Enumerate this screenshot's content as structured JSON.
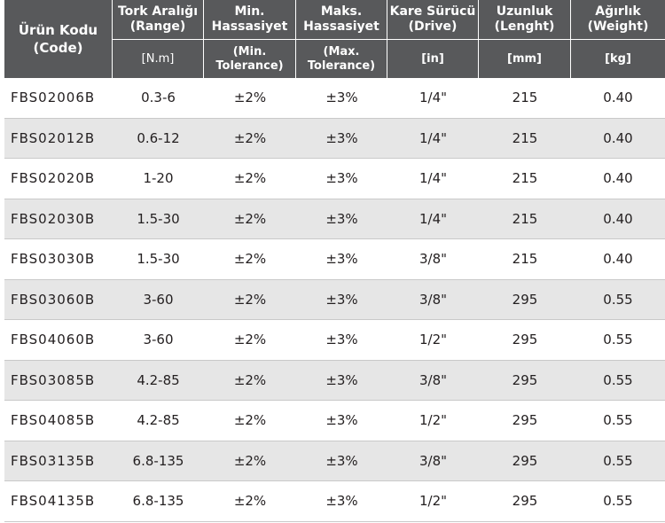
{
  "header": {
    "code": {
      "line1": "Ürün Kodu",
      "line2": "(Code)"
    },
    "range": {
      "line1": "Tork Aralığı",
      "line2": "(Range)",
      "unit": "[N.m]"
    },
    "min_tol": {
      "line1": "Min.",
      "line2": "Hassasiyet",
      "sub1": "(Min.",
      "sub2": "Tolerance)"
    },
    "max_tol": {
      "line1": "Maks.",
      "line2": "Hassasiyet",
      "sub1": "(Max.",
      "sub2": "Tolerance)"
    },
    "drive": {
      "line1": "Kare Sürücü",
      "line2": "(Drive)",
      "unit": "[in]"
    },
    "length": {
      "line1": "Uzunluk",
      "line2": "(Lenght)",
      "unit": "[mm]"
    },
    "weight": {
      "line1": "Ağırlık",
      "line2": "(Weight)",
      "unit": "[kg]"
    }
  },
  "rows": [
    {
      "code": "FBS02006B",
      "range": "0.3-6",
      "min": "±2%",
      "max": "±3%",
      "drive": "1/4\"",
      "length": "215",
      "weight": "0.40"
    },
    {
      "code": "FBS02012B",
      "range": "0.6-12",
      "min": "±2%",
      "max": "±3%",
      "drive": "1/4\"",
      "length": "215",
      "weight": "0.40"
    },
    {
      "code": "FBS02020B",
      "range": "1-20",
      "min": "±2%",
      "max": "±3%",
      "drive": "1/4\"",
      "length": "215",
      "weight": "0.40"
    },
    {
      "code": "FBS02030B",
      "range": "1.5-30",
      "min": "±2%",
      "max": "±3%",
      "drive": "1/4\"",
      "length": "215",
      "weight": "0.40"
    },
    {
      "code": "FBS03030B",
      "range": "1.5-30",
      "min": "±2%",
      "max": "±3%",
      "drive": "3/8\"",
      "length": "215",
      "weight": "0.40"
    },
    {
      "code": "FBS03060B",
      "range": "3-60",
      "min": "±2%",
      "max": "±3%",
      "drive": "3/8\"",
      "length": "295",
      "weight": "0.55"
    },
    {
      "code": "FBS04060B",
      "range": "3-60",
      "min": "±2%",
      "max": "±3%",
      "drive": "1/2\"",
      "length": "295",
      "weight": "0.55"
    },
    {
      "code": "FBS03085B",
      "range": "4.2-85",
      "min": "±2%",
      "max": "±3%",
      "drive": "3/8\"",
      "length": "295",
      "weight": "0.55"
    },
    {
      "code": "FBS04085B",
      "range": "4.2-85",
      "min": "±2%",
      "max": "±3%",
      "drive": "1/2\"",
      "length": "295",
      "weight": "0.55"
    },
    {
      "code": "FBS03135B",
      "range": "6.8-135",
      "min": "±2%",
      "max": "±3%",
      "drive": "3/8\"",
      "length": "295",
      "weight": "0.55"
    },
    {
      "code": "FBS04135B",
      "range": "6.8-135",
      "min": "±2%",
      "max": "±3%",
      "drive": "1/2\"",
      "length": "295",
      "weight": "0.55"
    }
  ],
  "colors": {
    "header_bg": "#58595b",
    "alt_row_bg": "#e6e6e6",
    "text": "#231f20"
  }
}
